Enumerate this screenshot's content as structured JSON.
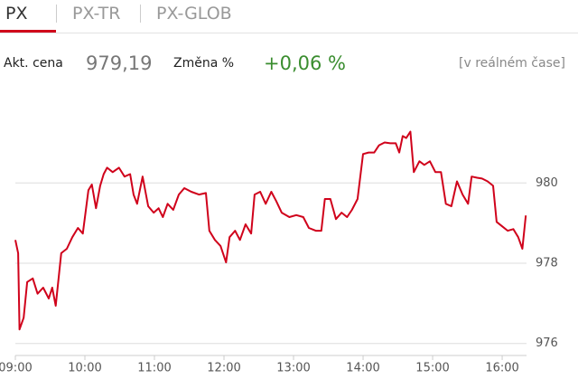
{
  "tabs": [
    "PX",
    "PX-TR",
    "PX-GLOB"
  ],
  "quote": {
    "price_label": "Akt. cena",
    "price": "979,19",
    "change_label": "Změna %",
    "change": "+0,06 %",
    "note": "[v reálném čase]"
  },
  "chart_data": {
    "type": "line",
    "color": "#d0021b",
    "x": [
      9.0,
      9.04,
      9.06,
      9.12,
      9.17,
      9.25,
      9.32,
      9.4,
      9.48,
      9.53,
      9.58,
      9.66,
      9.74,
      9.82,
      9.9,
      9.97,
      10.05,
      10.1,
      10.16,
      10.22,
      10.27,
      10.32,
      10.4,
      10.49,
      10.57,
      10.65,
      10.7,
      10.75,
      10.83,
      10.91,
      10.99,
      11.06,
      11.12,
      11.19,
      11.27,
      11.35,
      11.43,
      11.53,
      11.64,
      11.74,
      11.79,
      11.87,
      11.95,
      12.03,
      12.08,
      12.16,
      12.23,
      12.31,
      12.39,
      12.44,
      12.52,
      12.6,
      12.68,
      12.75,
      12.83,
      12.94,
      13.04,
      13.14,
      13.22,
      13.32,
      13.4,
      13.45,
      13.53,
      13.61,
      13.69,
      13.77,
      13.84,
      13.92,
      14.0,
      14.08,
      14.16,
      14.23,
      14.31,
      14.39,
      14.47,
      14.52,
      14.57,
      14.62,
      14.68,
      14.73,
      14.81,
      14.88,
      14.96,
      15.04,
      15.12,
      15.19,
      15.27,
      15.35,
      15.43,
      15.51,
      15.56,
      15.64,
      15.71,
      15.79,
      15.87,
      15.92,
      16.0,
      16.08,
      16.16,
      16.23,
      16.29,
      16.34
    ],
    "values": [
      978.58,
      978.25,
      976.35,
      976.64,
      977.53,
      977.62,
      977.24,
      977.39,
      977.12,
      977.39,
      976.94,
      978.25,
      978.36,
      978.65,
      978.88,
      978.74,
      979.82,
      979.96,
      979.37,
      979.93,
      980.22,
      980.38,
      980.27,
      980.38,
      980.16,
      980.22,
      979.71,
      979.48,
      980.16,
      979.42,
      979.26,
      979.37,
      979.15,
      979.48,
      979.33,
      979.71,
      979.87,
      979.78,
      979.71,
      979.75,
      978.81,
      978.58,
      978.43,
      978.02,
      978.65,
      978.81,
      978.58,
      978.97,
      978.74,
      979.71,
      979.78,
      979.48,
      979.78,
      979.55,
      979.26,
      979.15,
      979.2,
      979.15,
      978.88,
      978.81,
      978.81,
      979.6,
      979.6,
      979.1,
      979.26,
      979.15,
      979.33,
      979.6,
      980.72,
      980.76,
      980.76,
      980.94,
      981.01,
      980.99,
      980.99,
      980.76,
      981.17,
      981.12,
      981.28,
      980.27,
      980.54,
      980.45,
      980.54,
      980.27,
      980.27,
      979.48,
      979.42,
      980.04,
      979.71,
      979.48,
      980.16,
      980.13,
      980.11,
      980.04,
      979.93,
      979.03,
      978.92,
      978.81,
      978.85,
      978.65,
      978.36,
      979.19
    ],
    "xlim": [
      9,
      16.35
    ],
    "xticks": [
      {
        "value": 9,
        "label": "09:00"
      },
      {
        "value": 10,
        "label": "10:00"
      },
      {
        "value": 11,
        "label": "11:00"
      },
      {
        "value": 12,
        "label": "12:00"
      },
      {
        "value": 13,
        "label": "13:00"
      },
      {
        "value": 14,
        "label": "14:00"
      },
      {
        "value": 15,
        "label": "15:00"
      },
      {
        "value": 16,
        "label": "16:00"
      }
    ],
    "ylim": [
      975.7,
      981.9
    ],
    "yticks": [
      976,
      978,
      980
    ],
    "grid": true
  }
}
